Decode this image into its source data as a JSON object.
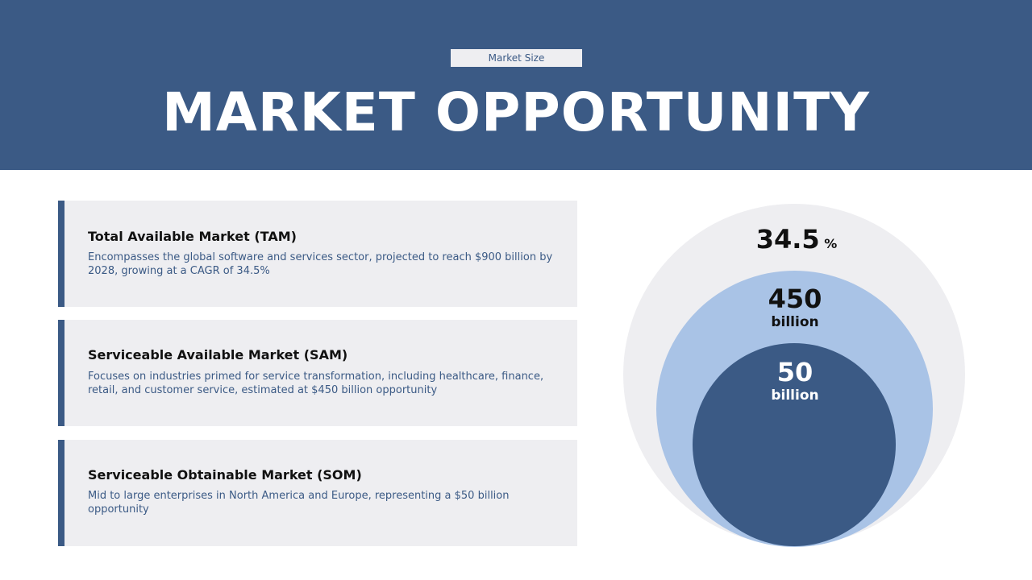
{
  "header": {
    "badge": "Market Size",
    "title": "MARKET OPPORTUNITY"
  },
  "cards": [
    {
      "title": "Total Available Market (TAM)",
      "description": "Encompasses the global software and services sector, projected to reach $900 billion by 2028, growing at a CAGR of 34.5%"
    },
    {
      "title": "Serviceable Available Market (SAM)",
      "description": "Focuses on industries primed for service transformation, including healthcare, finance, retail, and customer service, estimated at $450 billion opportunity"
    },
    {
      "title": "Serviceable Obtainable Market (SOM)",
      "description": "Mid to large enterprises in North America and Europe, representing a $50 billion opportunity"
    }
  ],
  "circles": {
    "tam": {
      "value": "34.5",
      "unit": "%",
      "color": "#eeeef1"
    },
    "sam": {
      "value": "450",
      "unit": "billion",
      "color": "#a9c3e6"
    },
    "som": {
      "value": "50",
      "unit": "billion",
      "color": "#3b5a85"
    }
  },
  "colors": {
    "accent": "#3b5a85",
    "card_bg": "#eeeef1"
  }
}
